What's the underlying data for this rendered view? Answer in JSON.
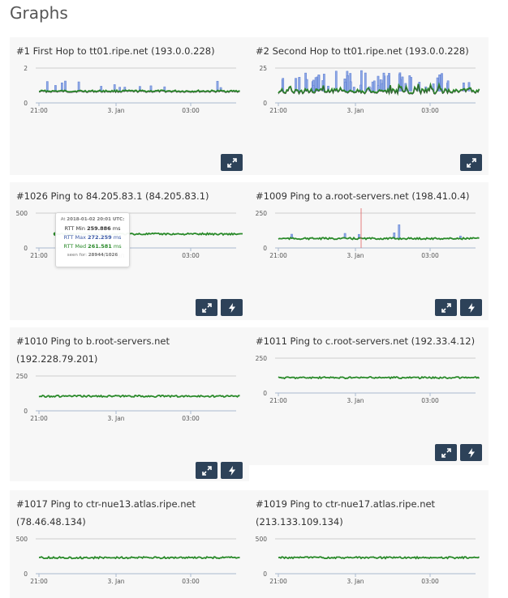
{
  "page": {
    "title": "Graphs"
  },
  "colors": {
    "button_bg": "#2d4259",
    "median": "#2a8a2a",
    "max": "#6f8fd8",
    "red_marker": "#e06060"
  },
  "icons": {
    "expand": "expand-arrows-icon",
    "bolt": "lightning-icon"
  },
  "cards": [
    {
      "title": "#1 First Hop to tt01.ripe.net (193.0.0.228)",
      "y_ticks": [
        "2",
        "0"
      ],
      "x_ticks": [
        "21:00",
        "3. Jan",
        "03:00"
      ],
      "style": "hop1",
      "buttons": [
        "expand"
      ]
    },
    {
      "title": "#2 Second Hop to tt01.ripe.net (193.0.0.228)",
      "y_ticks": [
        "25",
        "0"
      ],
      "x_ticks": [
        "21:00",
        "3. Jan",
        "03:00"
      ],
      "style": "hop2",
      "buttons": [
        "expand"
      ]
    },
    {
      "title": "#1026 Ping to 84.205.83.1 (84.205.83.1)",
      "y_ticks": [
        "500",
        "0"
      ],
      "x_ticks": [
        "21:00",
        "3. Jan",
        "03:00"
      ],
      "style": "high",
      "buttons": [
        "expand",
        "bolt"
      ]
    },
    {
      "title": "#1009 Ping to a.root-servers.net (198.41.0.4)",
      "y_ticks": [
        "250",
        "0"
      ],
      "x_ticks": [
        "21:00",
        "3. Jan",
        "03:00"
      ],
      "style": "low",
      "buttons": [
        "expand",
        "bolt"
      ]
    },
    {
      "title": "#1010 Ping to b.root-servers.net (192.228.79.201)",
      "y_ticks": [
        "250",
        "0"
      ],
      "x_ticks": [
        "21:00",
        "3. Jan",
        "03:00"
      ],
      "style": "mid",
      "buttons": [
        "expand",
        "bolt"
      ]
    },
    {
      "title": "#1011 Ping to c.root-servers.net (192.33.4.12)",
      "y_ticks": [
        "250",
        "0"
      ],
      "x_ticks": [
        "21:00",
        "3. Jan",
        "03:00"
      ],
      "style": "highmid",
      "buttons": [
        "expand",
        "bolt"
      ]
    },
    {
      "title": "#1017 Ping to ctr-nue13.atlas.ripe.net (78.46.48.134)",
      "y_ticks": [
        "500",
        "0"
      ],
      "x_ticks": [
        "21:00",
        "3. Jan",
        "03:00"
      ],
      "style": "half",
      "buttons": []
    },
    {
      "title": "#1019 Ping to ctr-nue17.atlas.ripe.net (213.133.109.134)",
      "y_ticks": [
        "500",
        "0"
      ],
      "x_ticks": [
        "21:00",
        "3. Jan",
        "03:00"
      ],
      "style": "half",
      "buttons": []
    }
  ],
  "tooltip": {
    "at_label": "At",
    "at_value": "2018-01-02 20:01 UTC:",
    "min_label": "RTT Min",
    "min_value": "259.886",
    "max_label": "RTT Max",
    "max_value": "272.259",
    "med_label": "RTT Med",
    "med_value": "261.581",
    "unit": "ms",
    "seen_label": "seen for:",
    "seen_value": "28944/1026"
  }
}
